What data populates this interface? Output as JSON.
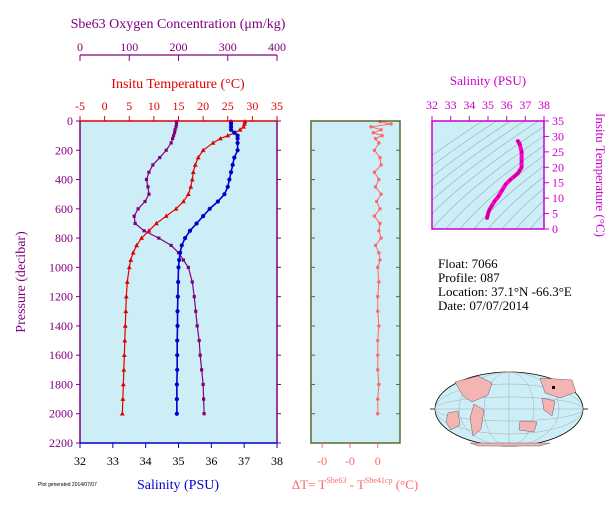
{
  "colors": {
    "panel_bg": "#cdeef7",
    "oxygen": "#800080",
    "temperature": "#e00000",
    "salinity": "#0000cc",
    "delta_t": "#ff6666",
    "ts_curve": "#ff00cc",
    "ts_axis": "#cc00cc",
    "dt_frame": "#556b2f"
  },
  "axis_labels": {
    "oxygen": "Sbe63 Oxygen Concentration (μm/kg)",
    "temperature": "Insitu Temperature (°C)",
    "salinity": "Salinity (PSU)",
    "pressure": "Pressure (decibar)",
    "delta_t_prefix": "ΔT= T",
    "delta_t_sup1": "Sbe63",
    "delta_t_mid": " - T",
    "delta_t_sup2": "Sbe41cp",
    "delta_t_suffix": " (°C)",
    "ts_salinity": "Salinity (PSU)",
    "ts_temperature": "Insitu Temperature (°C)"
  },
  "info": {
    "float": "Float:  7066",
    "profile": "Profile:  087",
    "location": "Location:  37.1°N  -66.3°E",
    "date": "Date:  07/07/2014"
  },
  "footer_text": "Plot generated 2014/07/07",
  "chart_data": [
    {
      "type": "line",
      "name": "profiles",
      "pressure_ticks": [
        0,
        200,
        400,
        600,
        800,
        1000,
        1200,
        1400,
        1600,
        1800,
        2000,
        2200
      ],
      "ylim": [
        0,
        2200
      ],
      "ylabel": "Pressure (decibar)",
      "axes": {
        "oxygen": {
          "ticks": [
            0,
            100,
            200,
            300,
            400
          ],
          "xlim": [
            0,
            400
          ]
        },
        "temperature": {
          "ticks": [
            -5,
            0,
            5,
            10,
            15,
            20,
            25,
            30,
            35
          ],
          "xlim": [
            -5,
            35
          ]
        },
        "salinity": {
          "ticks": [
            32,
            33,
            34,
            35,
            36,
            37,
            38
          ],
          "xlim": [
            32,
            38
          ]
        }
      },
      "series": [
        {
          "name": "Oxygen",
          "axis": "oxygen",
          "pressure": [
            5,
            20,
            40,
            60,
            80,
            100,
            120,
            150,
            200,
            250,
            300,
            350,
            400,
            450,
            500,
            550,
            600,
            650,
            700,
            750,
            800,
            850,
            900,
            950,
            1000,
            1100,
            1200,
            1300,
            1400,
            1500,
            1600,
            1700,
            1800,
            1900,
            2000
          ],
          "values": [
            196,
            196,
            195,
            193,
            192,
            190,
            188,
            185,
            175,
            162,
            148,
            140,
            135,
            138,
            140,
            132,
            118,
            110,
            112,
            130,
            160,
            185,
            200,
            210,
            220,
            228,
            232,
            235,
            238,
            242,
            244,
            247,
            250,
            251,
            252
          ]
        },
        {
          "name": "Temperature",
          "axis": "temperature",
          "pressure": [
            5,
            20,
            40,
            60,
            80,
            100,
            120,
            150,
            200,
            250,
            300,
            350,
            400,
            450,
            500,
            550,
            600,
            650,
            700,
            750,
            800,
            850,
            900,
            950,
            1000,
            1100,
            1200,
            1300,
            1400,
            1500,
            1600,
            1700,
            1800,
            1900,
            2000
          ],
          "values": [
            28.5,
            28.4,
            28.2,
            27.5,
            26.5,
            25.0,
            23.5,
            22.0,
            20.0,
            19.0,
            18.4,
            18.0,
            17.8,
            17.5,
            17.0,
            16.0,
            14.5,
            12.5,
            10.5,
            9.0,
            7.5,
            6.5,
            5.8,
            5.3,
            5.0,
            4.6,
            4.4,
            4.3,
            4.2,
            4.1,
            4.0,
            3.9,
            3.8,
            3.7,
            3.6
          ]
        },
        {
          "name": "Salinity",
          "axis": "salinity",
          "pressure": [
            5,
            20,
            40,
            60,
            80,
            100,
            120,
            150,
            200,
            250,
            300,
            350,
            400,
            450,
            500,
            550,
            600,
            650,
            700,
            750,
            800,
            850,
            900,
            950,
            1000,
            1100,
            1200,
            1300,
            1400,
            1500,
            1600,
            1700,
            1800,
            1900,
            2000
          ],
          "values": [
            36.6,
            36.6,
            36.6,
            36.6,
            36.7,
            36.8,
            36.8,
            36.8,
            36.8,
            36.7,
            36.65,
            36.6,
            36.55,
            36.5,
            36.4,
            36.2,
            35.95,
            35.75,
            35.55,
            35.35,
            35.2,
            35.1,
            35.05,
            35.02,
            35.0,
            34.99,
            34.98,
            34.97,
            34.97,
            34.96,
            34.96,
            34.96,
            34.95,
            34.95,
            34.95
          ]
        }
      ]
    },
    {
      "type": "scatter",
      "name": "delta_t",
      "xlabel": "ΔT= TSbe63 - TSbe41cp (°C)",
      "x_ticks": [
        "-0",
        "-0",
        "0"
      ],
      "xlim": [
        -0.06,
        0.02
      ],
      "tick_values": [
        -0.05,
        -0.025,
        0
      ],
      "ylim": [
        0,
        2200
      ],
      "pressure": [
        5,
        20,
        40,
        60,
        80,
        100,
        120,
        150,
        200,
        250,
        300,
        350,
        400,
        450,
        500,
        550,
        600,
        650,
        700,
        750,
        800,
        850,
        900,
        950,
        1000,
        1100,
        1200,
        1300,
        1400,
        1500,
        1600,
        1700,
        1800,
        1900,
        2000
      ],
      "values": [
        0.002,
        0.012,
        -0.006,
        0.003,
        -0.004,
        0.004,
        -0.002,
        0.001,
        -0.003,
        0.002,
        0.003,
        -0.003,
        0.001,
        -0.002,
        0.003,
        -0.001,
        0.002,
        -0.003,
        0.002,
        0.001,
        0.003,
        -0.002,
        0.001,
        0.002,
        0.0,
        0.001,
        0.0,
        0.0,
        0.001,
        0.0,
        0.0,
        0.0,
        0.001,
        0.0,
        0.0
      ]
    },
    {
      "type": "line",
      "name": "ts_diagram",
      "xlabel": "Salinity (PSU)",
      "ylabel": "Insitu Temperature (°C)",
      "x_ticks": [
        32,
        33,
        34,
        35,
        36,
        37,
        38
      ],
      "y_ticks": [
        0,
        5,
        10,
        15,
        20,
        25,
        30,
        35
      ],
      "xlim": [
        32,
        38
      ],
      "ylim": [
        0,
        35
      ],
      "x": [
        34.95,
        34.96,
        34.98,
        35.0,
        35.05,
        35.1,
        35.2,
        35.35,
        35.55,
        35.75,
        35.95,
        36.2,
        36.4,
        36.5,
        36.55,
        36.6,
        36.7,
        36.8,
        36.8,
        36.8,
        36.7,
        36.6
      ],
      "y": [
        3.6,
        3.9,
        4.3,
        5.0,
        5.8,
        6.5,
        7.5,
        9.0,
        10.5,
        12.5,
        14.5,
        16.0,
        17.0,
        17.5,
        17.8,
        18.0,
        19.0,
        20.0,
        22.0,
        25.0,
        27.5,
        28.5
      ]
    }
  ]
}
